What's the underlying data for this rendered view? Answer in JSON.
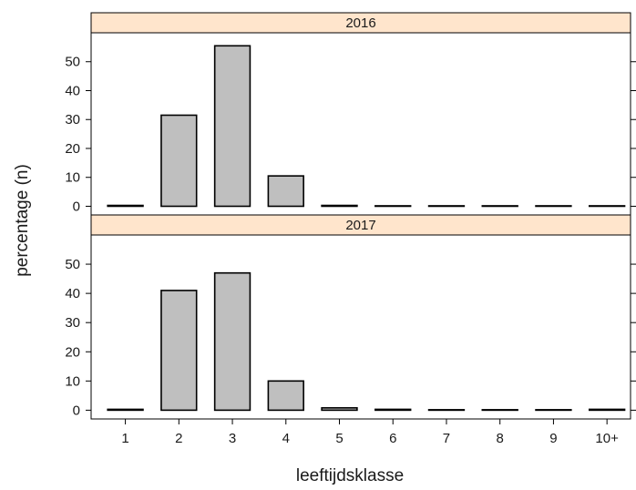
{
  "chart_data": {
    "type": "bar",
    "xlabel": "leeftijdsklasse",
    "ylabel": "percentage (n)",
    "categories": [
      "1",
      "2",
      "3",
      "4",
      "5",
      "6",
      "7",
      "8",
      "9",
      "10+"
    ],
    "ylim": [
      -3,
      60
    ],
    "yticks": [
      0,
      10,
      20,
      30,
      40,
      50
    ],
    "panels": [
      {
        "strip": "2016",
        "values": [
          0.3,
          31.5,
          55.5,
          10.5,
          0.3,
          0,
          0,
          0,
          0,
          0
        ]
      },
      {
        "strip": "2017",
        "values": [
          0.3,
          41,
          47,
          10,
          0.8,
          0.3,
          0,
          0,
          0,
          0.3
        ]
      }
    ],
    "colors": {
      "bar_fill": "#bfbfbf",
      "bar_stroke": "#000000",
      "strip_fill": "#ffe5cc",
      "frame": "#000000"
    }
  }
}
